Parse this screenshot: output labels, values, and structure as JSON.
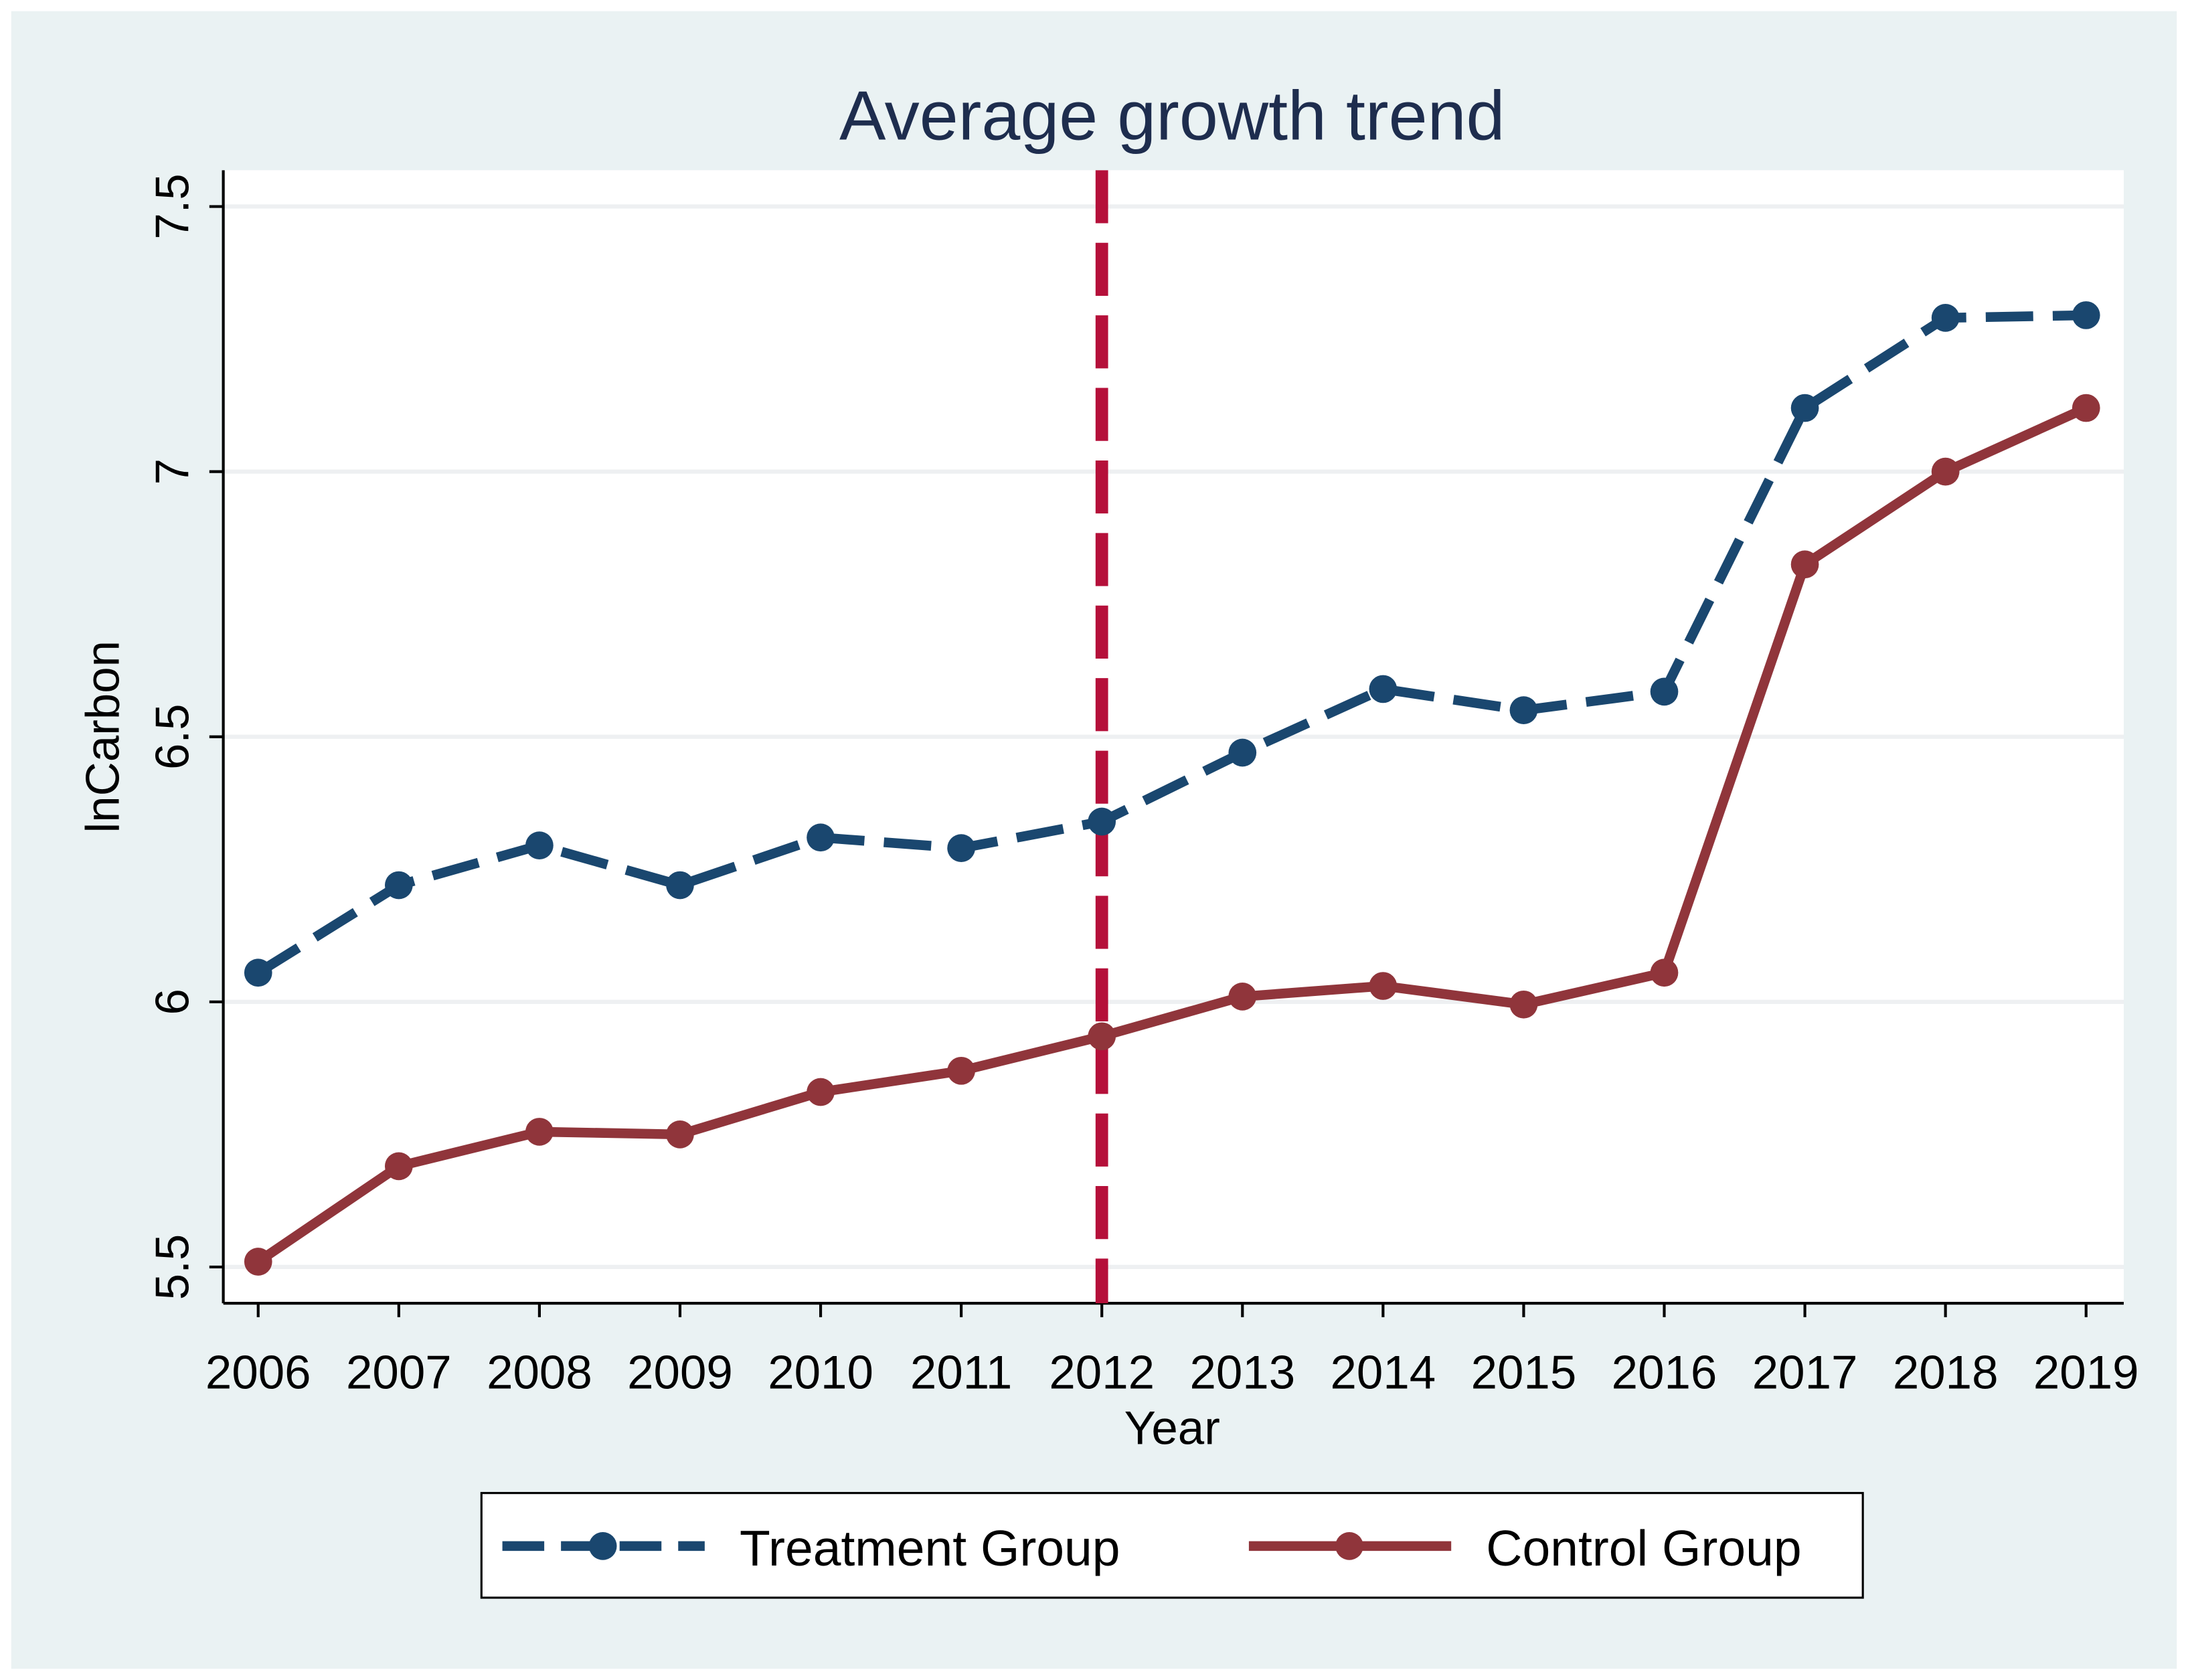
{
  "chart_data": {
    "type": "line",
    "title": "Average growth trend",
    "xlabel": "Year",
    "ylabel": "lnCarbon",
    "x": [
      2006,
      2007,
      2008,
      2009,
      2010,
      2011,
      2012,
      2013,
      2014,
      2015,
      2016,
      2017,
      2018,
      2019
    ],
    "x_tick_labels": [
      "2006",
      "2007",
      "2008",
      "2009",
      "2010",
      "2011",
      "2012",
      "2013",
      "2014",
      "2015",
      "2016",
      "2017",
      "2018",
      "2019"
    ],
    "y_ticks": [
      5.5,
      6,
      6.5,
      7,
      7.5
    ],
    "y_tick_labels": [
      "5.5",
      "6",
      "6.5",
      "7",
      "7.5"
    ],
    "ylim": [
      5.435,
      7.57
    ],
    "grid": true,
    "reference_line": {
      "x": 2012,
      "style": "dashed",
      "color": "#b5103a"
    },
    "series": [
      {
        "name": "Treatment Group",
        "style": "dashed",
        "color": "#1a476f",
        "values": [
          6.055,
          6.22,
          6.295,
          6.22,
          6.31,
          6.29,
          6.34,
          6.47,
          6.59,
          6.55,
          6.585,
          7.12,
          7.29,
          7.295
        ]
      },
      {
        "name": "Control Group",
        "style": "solid",
        "color": "#90353b",
        "values": [
          5.51,
          5.69,
          5.755,
          5.75,
          5.83,
          5.87,
          5.935,
          6.01,
          6.03,
          5.995,
          6.055,
          6.825,
          7.0,
          7.12
        ]
      }
    ],
    "legend_placement": "bottom"
  }
}
